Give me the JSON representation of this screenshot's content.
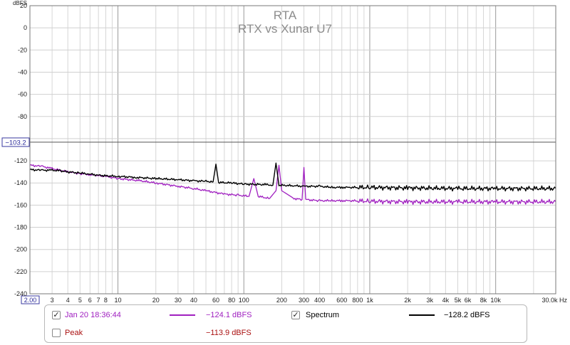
{
  "chart_data": {
    "type": "line",
    "title": "RTA",
    "subtitle": "RTX vs Xunar U7",
    "ylabel": "dBFS",
    "xlabel_unit": "Hz",
    "x_scale": "log",
    "xlim": [
      2,
      30000
    ],
    "ylim": [
      -240,
      20
    ],
    "grid": true,
    "x_ticks": [
      {
        "value": 3,
        "label": "3"
      },
      {
        "value": 4,
        "label": "4"
      },
      {
        "value": 5,
        "label": "5"
      },
      {
        "value": 6,
        "label": "6"
      },
      {
        "value": 7,
        "label": "7"
      },
      {
        "value": 8,
        "label": "8"
      },
      {
        "value": 10,
        "label": "10"
      },
      {
        "value": 20,
        "label": "20"
      },
      {
        "value": 30,
        "label": "30"
      },
      {
        "value": 40,
        "label": "40"
      },
      {
        "value": 60,
        "label": "60"
      },
      {
        "value": 80,
        "label": "80"
      },
      {
        "value": 100,
        "label": "100"
      },
      {
        "value": 200,
        "label": "200"
      },
      {
        "value": 300,
        "label": "300"
      },
      {
        "value": 400,
        "label": "400"
      },
      {
        "value": 600,
        "label": "600"
      },
      {
        "value": 800,
        "label": "800"
      },
      {
        "value": 1000,
        "label": "1k"
      },
      {
        "value": 2000,
        "label": "2k"
      },
      {
        "value": 3000,
        "label": "3k"
      },
      {
        "value": 4000,
        "label": "4k"
      },
      {
        "value": 5000,
        "label": "5k"
      },
      {
        "value": 6000,
        "label": "6k"
      },
      {
        "value": 8000,
        "label": "8k"
      },
      {
        "value": 10000,
        "label": "10k"
      },
      {
        "value": 30000,
        "label": "30.0k Hz"
      }
    ],
    "y_ticks": [
      20,
      0,
      -20,
      -40,
      -60,
      -80,
      -100,
      -120,
      -140,
      -160,
      -180,
      -200,
      -220,
      -240
    ],
    "x_min_label": "2.00",
    "cursor": {
      "y": -103.2,
      "label": "−103.2"
    },
    "series": [
      {
        "name": "Spectrum",
        "color": "#000000",
        "points": [
          [
            2,
            -128
          ],
          [
            2.5,
            -128.5
          ],
          [
            3,
            -128.5
          ],
          [
            3.5,
            -129
          ],
          [
            4,
            -130
          ],
          [
            5,
            -131
          ],
          [
            6,
            -132
          ],
          [
            7,
            -133
          ],
          [
            8,
            -133.5
          ],
          [
            10,
            -134
          ],
          [
            14,
            -135
          ],
          [
            20,
            -136
          ],
          [
            30,
            -137
          ],
          [
            40,
            -138
          ],
          [
            50,
            -138.5
          ],
          [
            57,
            -139
          ],
          [
            60,
            -123
          ],
          [
            63,
            -139.5
          ],
          [
            80,
            -140
          ],
          [
            100,
            -141
          ],
          [
            150,
            -141.5
          ],
          [
            170,
            -142
          ],
          [
            180,
            -122
          ],
          [
            190,
            -142
          ],
          [
            250,
            -142.5
          ],
          [
            300,
            -143
          ],
          [
            400,
            -143
          ],
          [
            500,
            -144
          ],
          [
            600,
            -144
          ],
          [
            700,
            -144
          ],
          [
            1000,
            -144
          ],
          [
            2000,
            -144.5
          ],
          [
            5000,
            -145
          ],
          [
            10000,
            -145
          ],
          [
            30000,
            -145
          ]
        ]
      },
      {
        "name": "Jan 20 18:36:44",
        "color": "#a020c0",
        "points": [
          [
            2,
            -124
          ],
          [
            2.5,
            -125
          ],
          [
            3,
            -127
          ],
          [
            4,
            -130
          ],
          [
            5,
            -131.5
          ],
          [
            6,
            -132.5
          ],
          [
            8,
            -134
          ],
          [
            10,
            -136
          ],
          [
            15,
            -138
          ],
          [
            20,
            -140
          ],
          [
            30,
            -143
          ],
          [
            40,
            -145
          ],
          [
            50,
            -147
          ],
          [
            70,
            -150
          ],
          [
            90,
            -151
          ],
          [
            110,
            -152
          ],
          [
            120,
            -136
          ],
          [
            130,
            -152
          ],
          [
            160,
            -154
          ],
          [
            180,
            -147
          ],
          [
            190,
            -124
          ],
          [
            200,
            -147
          ],
          [
            250,
            -154
          ],
          [
            290,
            -155
          ],
          [
            300,
            -126
          ],
          [
            310,
            -155
          ],
          [
            400,
            -156
          ],
          [
            500,
            -156
          ],
          [
            600,
            -156
          ],
          [
            700,
            -156
          ],
          [
            1000,
            -156.5
          ],
          [
            2000,
            -157
          ],
          [
            5000,
            -157
          ],
          [
            10000,
            -157
          ],
          [
            30000,
            -157
          ]
        ]
      }
    ]
  },
  "legend": {
    "item1_label": "Jan 20 18:36:44",
    "item1_value": "−124.1 dBFS",
    "item1_color": "#a020c0",
    "item2_label": "Spectrum",
    "item2_value": "−128.2 dBFS",
    "item2_color": "#000000",
    "item3_label": "Peak",
    "item3_value": "−113.9 dBFS",
    "item3_color": "#aa1111",
    "check_mark": "✓"
  }
}
